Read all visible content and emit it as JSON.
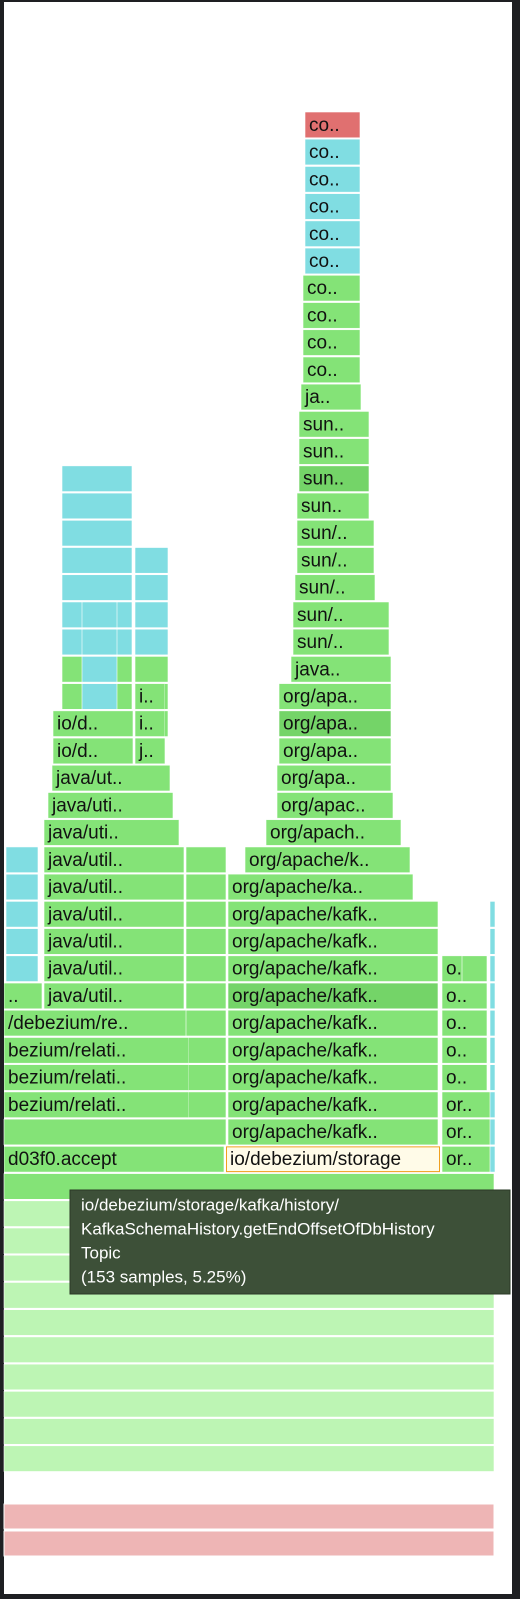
{
  "frames": [
    {
      "label": "co.."
    },
    {
      "label": "co.."
    },
    {
      "label": "co.."
    },
    {
      "label": "co.."
    },
    {
      "label": "co.."
    },
    {
      "label": "co.."
    },
    {
      "label": "co.."
    },
    {
      "label": "co.."
    },
    {
      "label": "co.."
    },
    {
      "label": "co.."
    },
    {
      "label": "ja.."
    },
    {
      "label": "sun.."
    },
    {
      "label": "sun.."
    },
    {
      "label": "sun.."
    },
    {
      "label": "sun.."
    },
    {
      "label": "sun/.."
    },
    {
      "label": "sun/.."
    },
    {
      "label": "sun/.."
    },
    {
      "label": "sun/.."
    },
    {
      "label": "sun/.."
    },
    {
      "label": "java.."
    },
    {
      "label": "org/apa.."
    },
    {
      "label": "org/apa.."
    },
    {
      "label": "org/apa.."
    },
    {
      "label": "org/apa.."
    },
    {
      "label": "org/apac.."
    },
    {
      "label": "org/apach.."
    },
    {
      "label": "org/apache/k.."
    },
    {
      "label": "org/apache/ka.."
    },
    {
      "label": "org/apache/kafk.."
    },
    {
      "label": "org/apache/kafk.."
    },
    {
      "label": "org/apache/kafk.."
    },
    {
      "label": "org/apache/kafk.."
    },
    {
      "label": "org/apache/kafk.."
    },
    {
      "label": "org/apache/kafk.."
    },
    {
      "label": "org/apache/kafk.."
    },
    {
      "label": "org/apache/kafk.."
    },
    {
      "label": "org/apache/kafk.."
    },
    {
      "label": "io/debezium/storage"
    },
    {
      "label": "o.."
    },
    {
      "label": "o.."
    },
    {
      "label": "o.."
    },
    {
      "label": "o.."
    },
    {
      "label": "o.."
    },
    {
      "label": "or.."
    },
    {
      "label": "or.."
    },
    {
      "label": "or.."
    },
    {
      "label": "i.."
    },
    {
      "label": "io/d.."
    },
    {
      "label": "i.."
    },
    {
      "label": "io/d.."
    },
    {
      "label": "j.."
    },
    {
      "label": "java/ut.."
    },
    {
      "label": "java/uti.."
    },
    {
      "label": "java/uti.."
    },
    {
      "label": "java/util.."
    },
    {
      "label": "java/util.."
    },
    {
      "label": "java/util.."
    },
    {
      "label": "java/util.."
    },
    {
      "label": "java/util.."
    },
    {
      "label": "java/util.."
    },
    {
      "label": ".."
    },
    {
      "label": "/debezium/re.."
    },
    {
      "label": "bezium/relati.."
    },
    {
      "label": "bezium/relati.."
    },
    {
      "label": "bezium/relati.."
    },
    {
      "label": "d03f0.accept"
    }
  ],
  "tooltip": {
    "lines": [
      "io/debezium/storage/kafka/history/",
      "KafkaSchemaHistory.getEndOffsetOfDbHistory",
      "Topic",
      "(153 samples, 5.25%)"
    ]
  }
}
